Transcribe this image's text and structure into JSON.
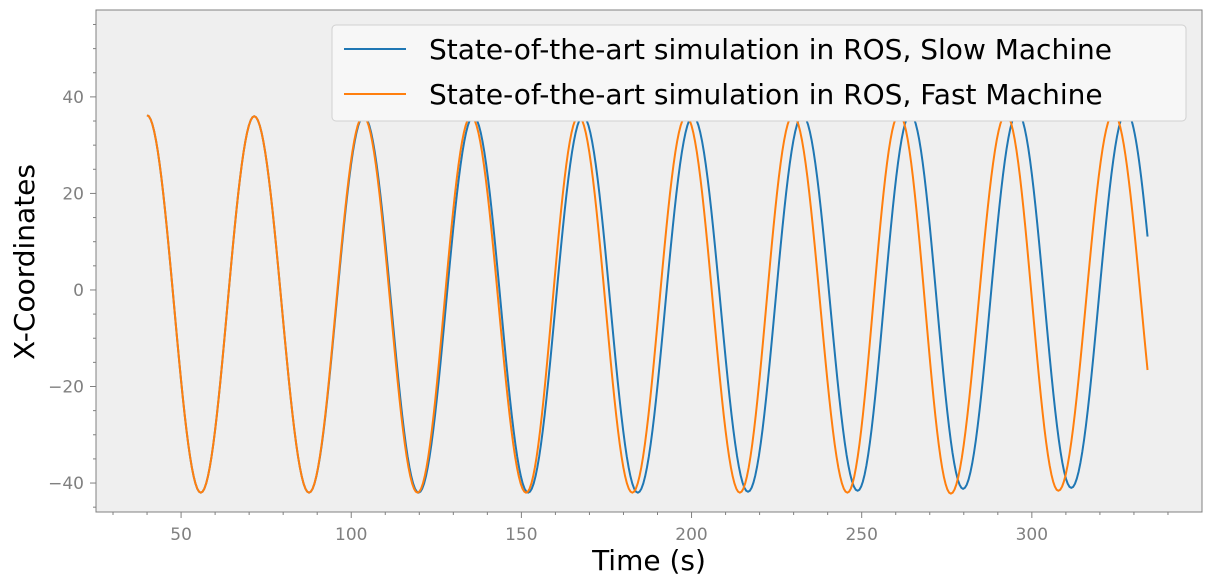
{
  "chart_data": {
    "type": "line",
    "title": "",
    "xlabel": "Time (s)",
    "ylabel": "X-Coordinates",
    "xlim": [
      25,
      350
    ],
    "ylim": [
      -46,
      58
    ],
    "xticks": [
      50,
      100,
      150,
      200,
      250,
      300
    ],
    "yticks": [
      -40,
      -20,
      0,
      20,
      40
    ],
    "xtick_labels": [
      "50",
      "100",
      "150",
      "200",
      "250",
      "300"
    ],
    "ytick_labels": [
      "−40",
      "−20",
      "0",
      "20",
      "40"
    ],
    "background_color": "#efefef",
    "grid": false,
    "legend_position": "top-right",
    "series": [
      {
        "name": "State-of-the-art simulation in ROS, Slow Machine",
        "color": "#1f77b4",
        "x_range": [
          40.0,
          334.0
        ],
        "min_points": [
          [
            55.8,
            -42.0
          ],
          [
            87.6,
            -42.0
          ],
          [
            119.8,
            -42.0
          ],
          [
            152.0,
            -42.0
          ],
          [
            184.2,
            -42.0
          ],
          [
            216.6,
            -41.8
          ],
          [
            248.8,
            -41.6
          ],
          [
            279.8,
            -41.2
          ],
          [
            311.6,
            -41.0
          ]
        ],
        "max_points": [
          [
            40.0,
            36.2
          ],
          [
            71.5,
            36.0
          ],
          [
            103.7,
            36.0
          ],
          [
            135.9,
            36.0
          ],
          [
            168.1,
            36.0
          ],
          [
            200.4,
            36.0
          ],
          [
            232.6,
            36.2
          ],
          [
            264.3,
            36.4
          ],
          [
            295.8,
            36.8
          ],
          [
            327.7,
            37.0
          ]
        ],
        "end_point": [
          334.0,
          8.5
        ]
      },
      {
        "name": "State-of-the-art simulation in ROS, Fast Machine",
        "color": "#ff7f0e",
        "x_range": [
          40.0,
          334.0
        ],
        "min_points": [
          [
            55.8,
            -42.0
          ],
          [
            87.6,
            -42.0
          ],
          [
            119.5,
            -42.0
          ],
          [
            151.4,
            -42.0
          ],
          [
            182.6,
            -42.0
          ],
          [
            214.2,
            -42.0
          ],
          [
            245.8,
            -42.0
          ],
          [
            276.2,
            -42.2
          ],
          [
            307.8,
            -41.6
          ]
        ],
        "max_points": [
          [
            40.0,
            36.2
          ],
          [
            71.5,
            36.0
          ],
          [
            103.5,
            36.0
          ],
          [
            135.2,
            36.0
          ],
          [
            166.8,
            36.0
          ],
          [
            198.4,
            36.0
          ],
          [
            229.8,
            36.2
          ],
          [
            261.0,
            36.4
          ],
          [
            292.4,
            36.4
          ],
          [
            324.0,
            36.6
          ]
        ],
        "end_point": [
          334.0,
          -24.0
        ]
      }
    ]
  }
}
